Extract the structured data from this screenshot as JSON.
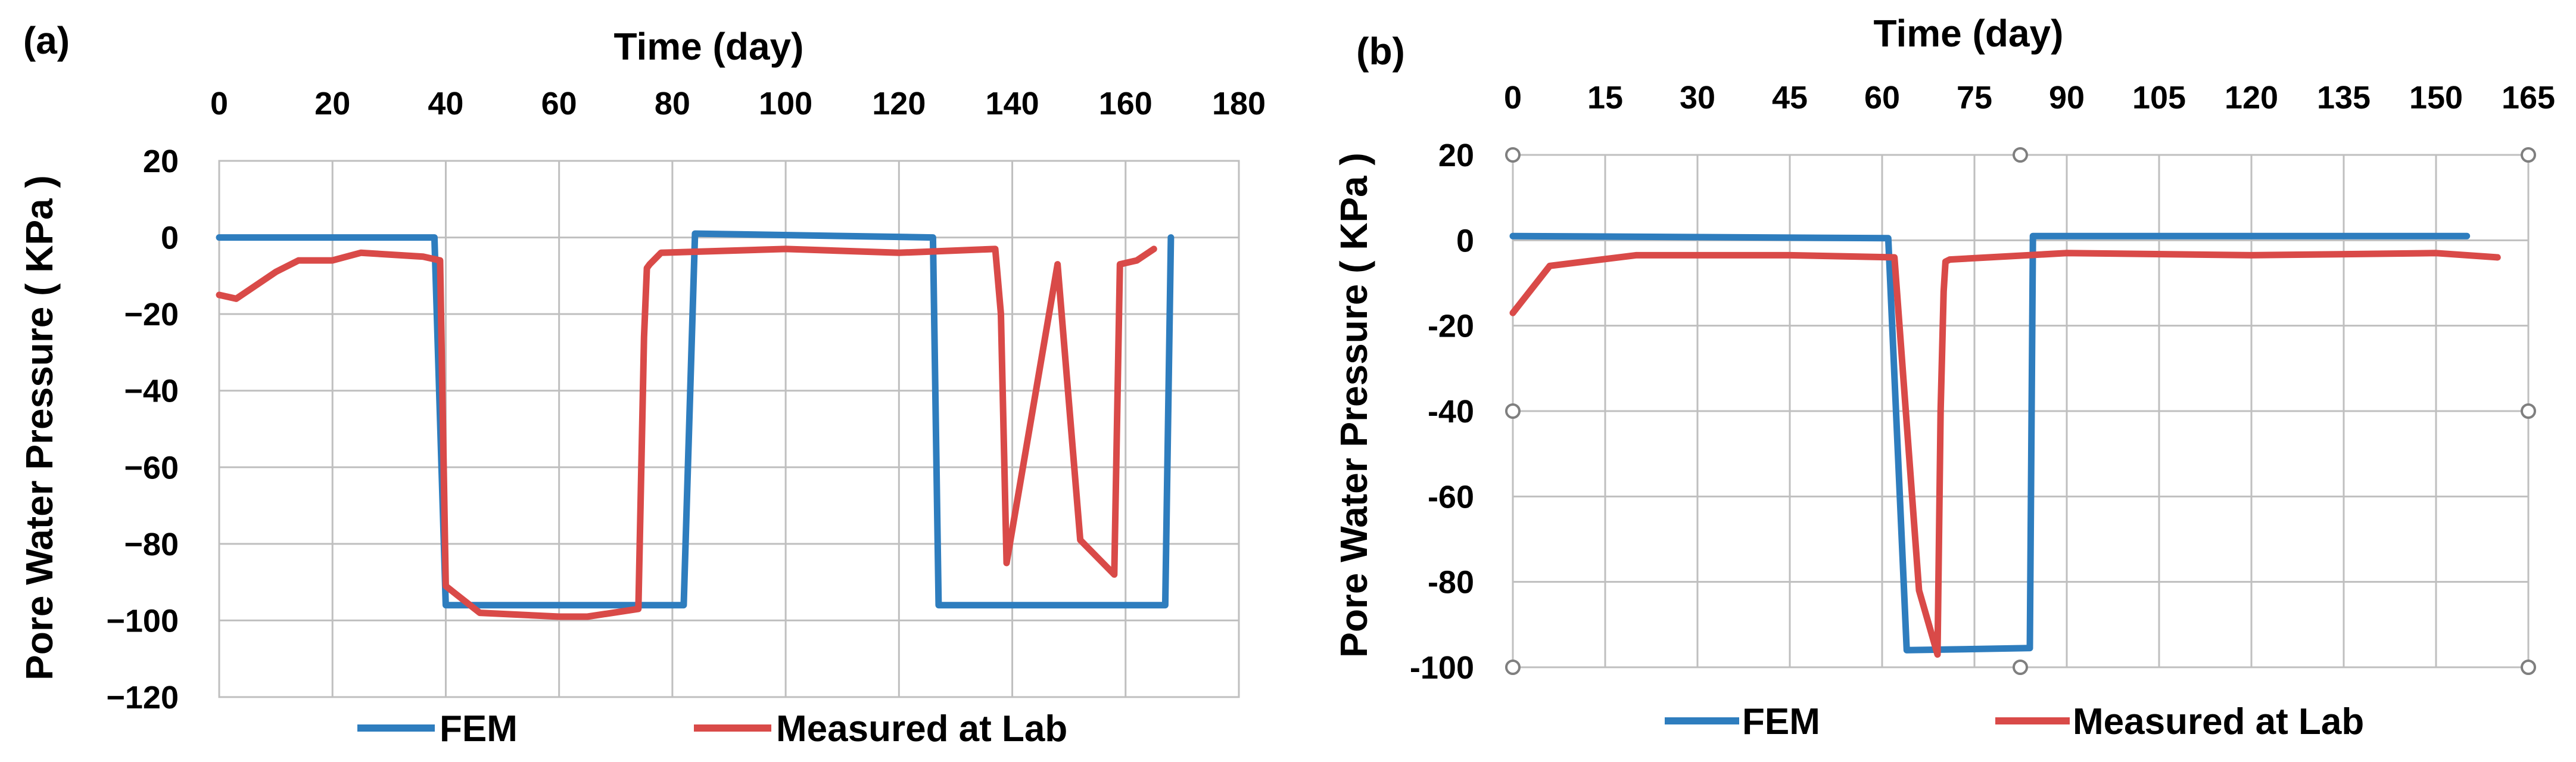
{
  "chart_data": [
    {
      "panel": "(a)",
      "type": "line",
      "xlabel": "Time (day)",
      "ylabel": "Pore Water Pressure ( KPa )",
      "xlim": [
        0,
        180
      ],
      "ylim": [
        -120,
        20
      ],
      "xticks": [
        0,
        20,
        40,
        60,
        80,
        100,
        120,
        140,
        160,
        180
      ],
      "yticks": [
        20,
        0,
        -20,
        -40,
        -60,
        -80,
        -100,
        -120
      ],
      "ytick_labels": [
        "20",
        "0",
        "−20",
        "−40",
        "−60",
        "−80",
        "−100",
        "−120"
      ],
      "grid": true,
      "legend_position": "bottom",
      "series": [
        {
          "name": "FEM",
          "color": "#2E7DBE",
          "x": [
            0,
            38,
            40,
            82,
            84,
            126,
            127,
            167,
            168
          ],
          "y": [
            0,
            0,
            -96,
            -96,
            1,
            0,
            -96,
            -96,
            0
          ]
        },
        {
          "name": "Measured at Lab",
          "color": "#D94A48",
          "x": [
            0,
            3,
            10,
            14,
            20,
            25,
            36,
            39,
            40,
            46,
            60,
            65,
            74,
            75,
            75.5,
            76,
            78,
            100,
            120,
            137,
            138,
            139,
            148,
            152,
            158,
            159,
            162,
            165
          ],
          "y": [
            -15,
            -16,
            -9,
            -6,
            -6,
            -4,
            -5,
            -6,
            -91,
            -98,
            -99,
            -99,
            -97,
            -26,
            -8,
            -7,
            -4,
            -3,
            -4,
            -3,
            -20,
            -85,
            -7,
            -79,
            -88,
            -7,
            -6,
            -3
          ]
        }
      ]
    },
    {
      "panel": "(b)",
      "type": "line",
      "xlabel": "Time (day)",
      "ylabel": "Pore Water Pressure ( KPa )",
      "xlim": [
        0,
        165
      ],
      "ylim": [
        -100,
        20
      ],
      "xticks": [
        0,
        15,
        30,
        45,
        60,
        75,
        90,
        105,
        120,
        135,
        150,
        165
      ],
      "yticks": [
        20,
        0,
        -20,
        -40,
        -60,
        -80,
        -100
      ],
      "ytick_labels": [
        "20",
        "0",
        "-20",
        "-40",
        "-60",
        "-80",
        "-100"
      ],
      "grid": true,
      "legend_position": "bottom",
      "series": [
        {
          "name": "FEM",
          "color": "#2E7DBE",
          "x": [
            0,
            61,
            64,
            84,
            84.5,
            155
          ],
          "y": [
            1,
            0.5,
            -96,
            -95.5,
            1,
            1
          ]
        },
        {
          "name": "Measured at Lab",
          "color": "#D94A48",
          "x": [
            0,
            6,
            20,
            45,
            62,
            66,
            69,
            69.5,
            70,
            70.3,
            71,
            90,
            120,
            150,
            160
          ],
          "y": [
            -17,
            -6,
            -3.5,
            -3.5,
            -4,
            -82,
            -97,
            -40,
            -12,
            -5,
            -4.5,
            -3,
            -3.5,
            -3,
            -4
          ]
        }
      ]
    }
  ]
}
